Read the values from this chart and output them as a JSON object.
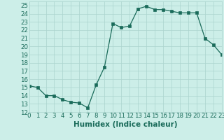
{
  "x": [
    0,
    1,
    2,
    3,
    4,
    5,
    6,
    7,
    8,
    9,
    10,
    11,
    12,
    13,
    14,
    15,
    16,
    17,
    18,
    19,
    20,
    21,
    22,
    23
  ],
  "y": [
    15.2,
    15.0,
    14.0,
    14.0,
    13.5,
    13.2,
    13.1,
    12.5,
    15.3,
    17.5,
    22.8,
    22.3,
    22.5,
    24.6,
    24.9,
    24.5,
    24.5,
    24.3,
    24.1,
    24.1,
    24.1,
    21.0,
    20.2,
    19.0
  ],
  "xlabel": "Humidex (Indice chaleur)",
  "xlim": [
    0,
    23
  ],
  "ylim": [
    12,
    25.5
  ],
  "yticks": [
    12,
    13,
    14,
    15,
    16,
    17,
    18,
    19,
    20,
    21,
    22,
    23,
    24,
    25
  ],
  "xticks": [
    0,
    1,
    2,
    3,
    4,
    5,
    6,
    7,
    8,
    9,
    10,
    11,
    12,
    13,
    14,
    15,
    16,
    17,
    18,
    19,
    20,
    21,
    22,
    23
  ],
  "line_color": "#1a6b5a",
  "marker_color": "#1a6b5a",
  "bg_color": "#cceee8",
  "grid_color": "#aad4ce",
  "tick_label_fontsize": 6.2,
  "xlabel_fontsize": 7.5
}
